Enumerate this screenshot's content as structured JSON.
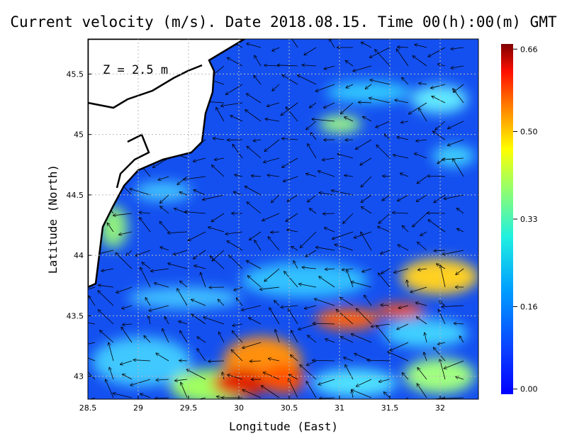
{
  "chart_data": {
    "type": "heatmap",
    "title": "Current velocity (m/s). Date 2018.08.15. Time 00(h):00(m) GMT",
    "annotation": "Z = 2.5 m",
    "x_label": "Longitude (East)",
    "y_label": "Latitude (North)",
    "xlim": [
      28.5,
      32.38
    ],
    "ylim": [
      42.81,
      45.79
    ],
    "xticks": [
      28.5,
      29,
      29.5,
      30,
      30.5,
      31,
      31.5,
      32
    ],
    "yticks": [
      43,
      43.5,
      44,
      44.5,
      45,
      45.5
    ],
    "grid": true,
    "colorbar": {
      "lim": [
        -0.01,
        0.67
      ],
      "ticks": [
        {
          "value": 0,
          "label": "0.00"
        },
        0.16,
        0.33,
        {
          "value": 0.5,
          "label": "0.50"
        },
        0.66
      ]
    }
  }
}
